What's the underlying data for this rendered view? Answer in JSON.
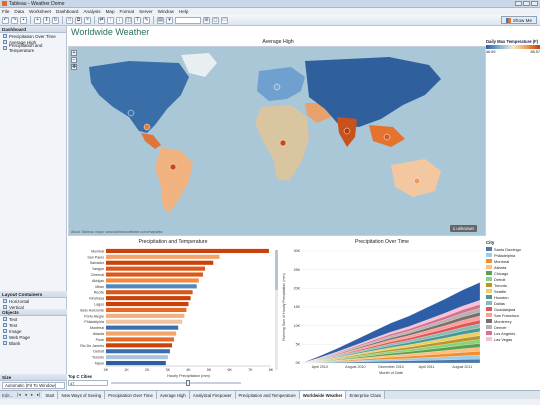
{
  "window": {
    "title": "Tableau - Weather Dome"
  },
  "menu": [
    "File",
    "Data",
    "Worksheet",
    "Dashboard",
    "Analysis",
    "Map",
    "Format",
    "Server",
    "Window",
    "Help"
  ],
  "toolbar": {
    "show_me_label": "Show Me"
  },
  "left_panel": {
    "dashboard_header": "Dashboard",
    "sheets": [
      "Precipitation Over Time",
      "Average High",
      "Precipitation and Temperature"
    ],
    "layout_header": "Layout Containers",
    "layout_items": [
      "Horizontal",
      "Vertical"
    ],
    "objects_header": "Objects",
    "objects_items": [
      "Text",
      "Text",
      "Image",
      "Web Page",
      "Blank"
    ],
    "size_header": "Size",
    "size_value": "Automatic (Fit To Window)"
  },
  "dashboard": {
    "title": "Worldwide Weather",
    "map_title": "Average High",
    "unknown_badge": "1 unknown",
    "map_copyright": "About Tableau maps: www.tableausoftware.com/mapdata",
    "legend_title": "Daily Max Temperature (F)",
    "legend_min": "46.69",
    "legend_max": "88.57"
  },
  "precip_chart": {
    "title": "Precipitation and Temperature",
    "xlabel": "Hourly Precipitation (mm)",
    "ticks": [
      "0K",
      "1K",
      "2K",
      "3K",
      "4K",
      "5K",
      "6K",
      "7K",
      "8K"
    ]
  },
  "over_time_chart": {
    "title": "Precipitation Over Time",
    "ylabel": "Running Sum of Hourly Precipitation (mm)",
    "xlabel": "Month of Date",
    "yticks": [
      "0K",
      "5K",
      "10K",
      "15K",
      "20K",
      "25K",
      "30K"
    ],
    "xticks": [
      "April 2010",
      "August 2010",
      "December 2010",
      "April 2011",
      "August 2011"
    ]
  },
  "city_legend": {
    "header": "City"
  },
  "top_c": {
    "label": "Top C Cities",
    "value": "47"
  },
  "tabs": [
    "Start",
    "New Ways of Seeing",
    "Precipitation Over Time",
    "Average High",
    "Analytical Firepower",
    "Precipitation and Temperature",
    "Worldwide Weather",
    "Enterprise Class"
  ],
  "active_tab": "Worldwide Weather",
  "status": {
    "text": "Edit..."
  },
  "chart_data": [
    {
      "type": "bar",
      "title": "Precipitation and Temperature",
      "xlabel": "Hourly Precipitation (mm)",
      "xlim": [
        0,
        8000
      ],
      "categories": [
        "Mumbai",
        "San Paulo",
        "Salvador",
        "Yangon",
        "Chennai",
        "Abidjan",
        "Milan",
        "Recife",
        "Kinshasa",
        "Lagos",
        "Belo Horizonte",
        "Porto Alegre",
        "Philadelphia",
        "Montreal",
        "Atlanta",
        "Pune",
        "Rio De Janeiro",
        "Detroit",
        "Toronto",
        "Taipei"
      ],
      "values": [
        7900,
        5500,
        5200,
        4800,
        4700,
        4500,
        4400,
        4200,
        4100,
        4000,
        3900,
        3800,
        3700,
        3500,
        3400,
        3300,
        3200,
        3100,
        3000,
        2900
      ],
      "colors": [
        "#c9410b",
        "#f4a46b",
        "#c9410b",
        "#d9581c",
        "#d9581c",
        "#f48a3f",
        "#4f8ac0",
        "#d9581c",
        "#c9410b",
        "#c9410b",
        "#e56a25",
        "#f4b07f",
        "#f2c4a3",
        "#3c6fac",
        "#f4a46b",
        "#e56a25",
        "#c9410b",
        "#3c6fac",
        "#a8c5e0",
        "#2e5e9e"
      ]
    },
    {
      "type": "area",
      "title": "Precipitation Over Time",
      "xlabel": "Month of Date",
      "ylabel": "Running Sum of Hourly Precipitation (mm)",
      "ylim": [
        0,
        30000
      ],
      "x": [
        "2010-02",
        "2010-04",
        "2010-06",
        "2010-08",
        "2010-10",
        "2010-12",
        "2011-02",
        "2011-04",
        "2011-06",
        "2011-08",
        "2011-10"
      ],
      "series": [
        {
          "name": "Santo Domingo",
          "color": "#4e79a7",
          "values": [
            0,
            90,
            190,
            300,
            410,
            520,
            610,
            720,
            830,
            950,
            1050
          ]
        },
        {
          "name": "Philadelphia",
          "color": "#a0cbe8",
          "values": [
            0,
            90,
            190,
            300,
            410,
            520,
            610,
            720,
            830,
            950,
            1050
          ]
        },
        {
          "name": "Montreal",
          "color": "#f28e2b",
          "values": [
            0,
            90,
            190,
            300,
            410,
            520,
            610,
            720,
            830,
            950,
            1050
          ]
        },
        {
          "name": "Atlanta",
          "color": "#ffbe7d",
          "values": [
            0,
            90,
            190,
            300,
            410,
            520,
            610,
            720,
            830,
            950,
            1050
          ]
        },
        {
          "name": "Chicago",
          "color": "#59a14f",
          "values": [
            0,
            90,
            190,
            300,
            410,
            520,
            610,
            720,
            830,
            950,
            1050
          ]
        },
        {
          "name": "Detroit",
          "color": "#8cd17d",
          "values": [
            0,
            90,
            190,
            300,
            410,
            520,
            610,
            720,
            830,
            950,
            1050
          ]
        },
        {
          "name": "Toronto",
          "color": "#b6992d",
          "values": [
            0,
            90,
            190,
            300,
            410,
            520,
            610,
            720,
            830,
            950,
            1050
          ]
        },
        {
          "name": "Seattle",
          "color": "#f1ce63",
          "values": [
            0,
            90,
            190,
            300,
            410,
            520,
            610,
            720,
            830,
            950,
            1050
          ]
        },
        {
          "name": "Houston",
          "color": "#499894",
          "values": [
            0,
            90,
            190,
            300,
            410,
            520,
            610,
            720,
            830,
            950,
            1050
          ]
        },
        {
          "name": "Dallas",
          "color": "#86bcb6",
          "values": [
            0,
            90,
            190,
            300,
            410,
            520,
            610,
            720,
            830,
            950,
            1050
          ]
        },
        {
          "name": "Guadalajara",
          "color": "#e15759",
          "values": [
            0,
            90,
            190,
            300,
            410,
            520,
            610,
            720,
            830,
            950,
            1050
          ]
        },
        {
          "name": "San Francisco",
          "color": "#ff9d9a",
          "values": [
            0,
            90,
            190,
            300,
            410,
            520,
            610,
            720,
            830,
            950,
            1050
          ]
        },
        {
          "name": "Monterrey",
          "color": "#79706e",
          "values": [
            0,
            90,
            190,
            300,
            410,
            520,
            610,
            720,
            830,
            950,
            1050
          ]
        },
        {
          "name": "Denver",
          "color": "#bab0ac",
          "values": [
            0,
            90,
            190,
            300,
            410,
            520,
            610,
            720,
            830,
            950,
            1050
          ]
        },
        {
          "name": "Los Angeles",
          "color": "#d37295",
          "values": [
            0,
            90,
            190,
            300,
            410,
            520,
            610,
            720,
            830,
            950,
            1050
          ]
        },
        {
          "name": "Las Vegas",
          "color": "#fabfd2",
          "values": [
            0,
            90,
            190,
            300,
            410,
            520,
            610,
            720,
            830,
            950,
            1050
          ]
        },
        {
          "name": "Other",
          "color": "#2f5ea8",
          "values": [
            0,
            450,
            900,
            1400,
            1900,
            2400,
            2800,
            3300,
            3800,
            4300,
            4800
          ]
        }
      ],
      "x_ticks": [
        "April 2010",
        "August 2010",
        "December 2010",
        "April 2011",
        "August 2011"
      ]
    }
  ]
}
